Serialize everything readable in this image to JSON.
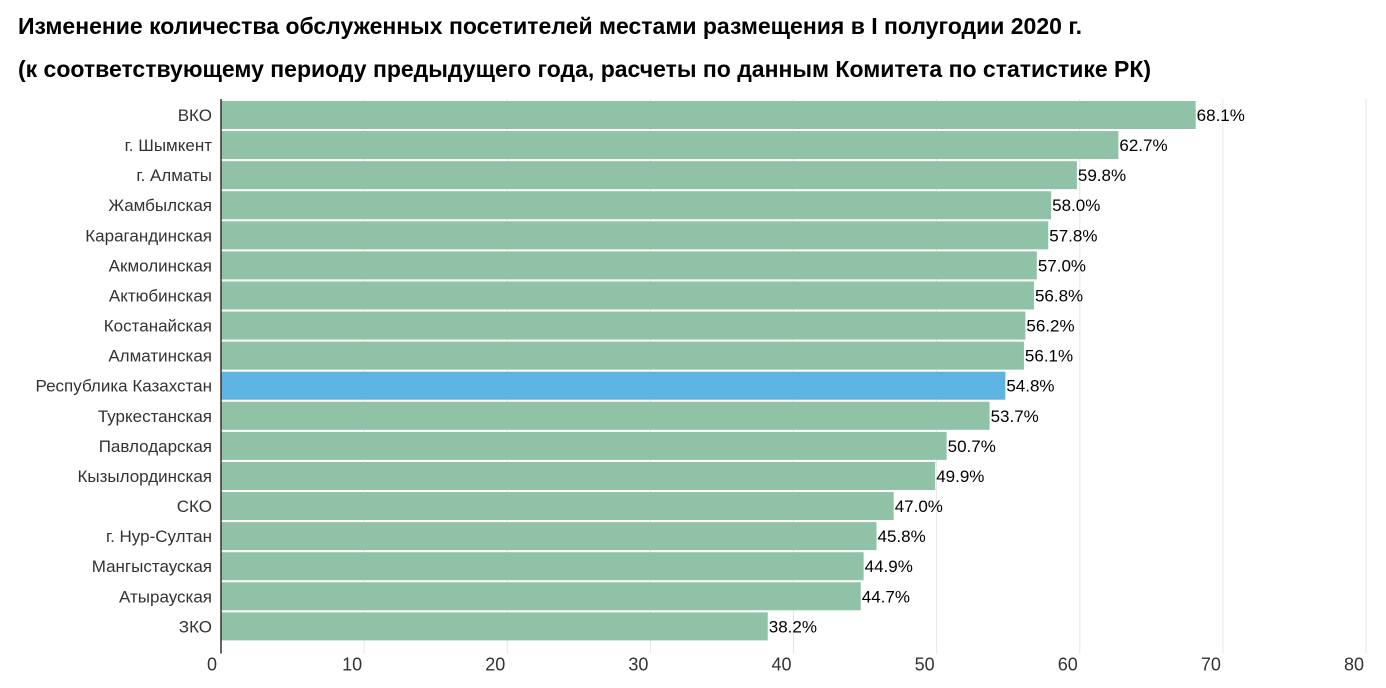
{
  "title_line_1": "Изменение количества обслуженных посетителей местами размещения в I полугодии 2020 г.",
  "title_line_2": "(к соответствующему периоду предыдущего года, расчеты по данным Комитета по статистике РК)",
  "chart_data": {
    "type": "bar",
    "orientation": "horizontal",
    "title": "Изменение количества обслуженных посетителей местами размещения в I полугодии 2020 г. (к соответствующему периоду предыдущего года, расчеты по данным Комитета по статистике РК)",
    "categories": [
      "ВКО",
      "г. Шымкент",
      "г. Алматы",
      "Жамбылская",
      "Карагандинская",
      "Акмолинская",
      "Актюбинская",
      "Костанайская",
      "Алматинская",
      "Республика Казахстан",
      "Туркестанская",
      "Павлодарская",
      "Кызылординская",
      "СКО",
      "г. Нур-Султан",
      "Мангыстауская",
      "Атырауская",
      "ЗКО"
    ],
    "values": [
      68.1,
      62.7,
      59.8,
      58.0,
      57.8,
      57.0,
      56.8,
      56.2,
      56.1,
      54.8,
      53.7,
      50.7,
      49.9,
      47.0,
      45.8,
      44.9,
      44.7,
      38.2
    ],
    "value_labels": [
      "68.1%",
      "62.7%",
      "59.8%",
      "58.0%",
      "57.8%",
      "57.0%",
      "56.8%",
      "56.2%",
      "56.1%",
      "54.8%",
      "53.7%",
      "50.7%",
      "49.9%",
      "47.0%",
      "45.8%",
      "44.9%",
      "44.7%",
      "38.2%"
    ],
    "highlight_category": "Республика Казахстан",
    "xlim": [
      0,
      80
    ],
    "xticks": [
      0,
      10,
      20,
      30,
      40,
      50,
      60,
      70,
      80
    ],
    "grid": true,
    "colors": {
      "bar": "#8fc2a6",
      "highlight": "#5db4e3",
      "grid": "#e6e6e6",
      "axis": "#333333"
    }
  }
}
